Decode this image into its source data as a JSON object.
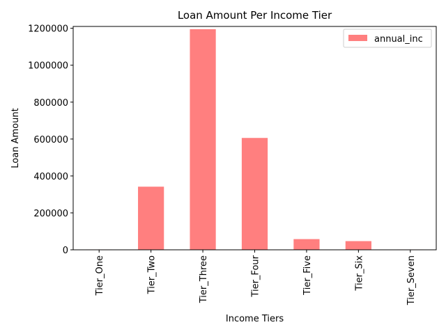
{
  "chart_data": {
    "type": "bar",
    "title": "Loan Amount Per Income Tier",
    "xlabel": "Income Tiers",
    "ylabel": "Loan Amount",
    "categories": [
      "Tier_One",
      "Tier_Two",
      "Tier_Three",
      "Tier_Four",
      "Tier_Five",
      "Tier_Six",
      "Tier_Seven"
    ],
    "series": [
      {
        "name": "annual_inc",
        "values": [
          2000,
          342000,
          1195000,
          606000,
          58000,
          47000,
          2000
        ],
        "color": "#ff7f7f"
      }
    ],
    "ylim": [
      0,
      1210000
    ],
    "yticks": [
      0,
      200000,
      400000,
      600000,
      800000,
      1000000,
      1200000
    ],
    "ytick_labels": [
      "0",
      "200000",
      "400000",
      "600000",
      "800000",
      "1000000",
      "1200000"
    ],
    "grid": false,
    "legend_position": "top-right"
  }
}
